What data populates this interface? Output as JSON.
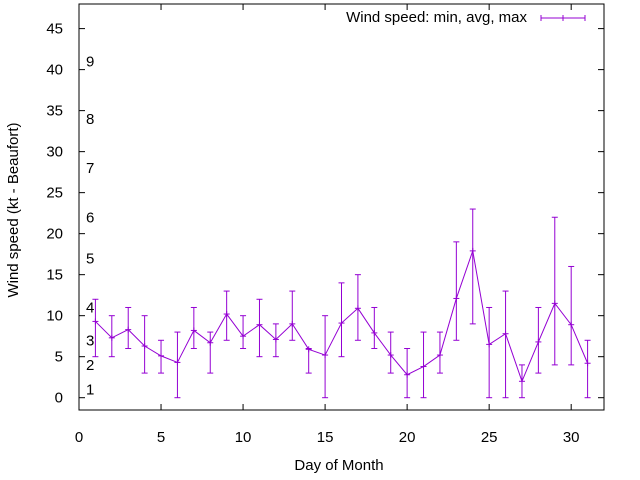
{
  "chart_data": {
    "type": "line",
    "title": "",
    "xlabel": "Day of Month",
    "ylabel": "Wind speed (kt - Beaufort)",
    "xlim": [
      0,
      32
    ],
    "ylim": [
      -1.5,
      48
    ],
    "x_ticks": [
      "0",
      "5",
      "10",
      "15",
      "20",
      "25",
      "30"
    ],
    "y_ticks": [
      "0",
      "5",
      "10",
      "15",
      "20",
      "25",
      "30",
      "35",
      "40",
      "45"
    ],
    "grid": false,
    "legend": "top-right",
    "beaufort_labels": [
      {
        "label": "1",
        "y": 1
      },
      {
        "label": "2",
        "y": 4
      },
      {
        "label": "3",
        "y": 7
      },
      {
        "label": "4",
        "y": 11
      },
      {
        "label": "5",
        "y": 17
      },
      {
        "label": "6",
        "y": 22
      },
      {
        "label": "7",
        "y": 28
      },
      {
        "label": "8",
        "y": 34
      },
      {
        "label": "9",
        "y": 41
      }
    ],
    "series": [
      {
        "name": "Wind speed: min, avg, max",
        "color": "#9400d3",
        "x": [
          1,
          2,
          3,
          4,
          5,
          6,
          7,
          8,
          9,
          10,
          11,
          12,
          13,
          14,
          15,
          16,
          17,
          18,
          19,
          20,
          21,
          22,
          23,
          24,
          25,
          26,
          27,
          28,
          29,
          30,
          31
        ],
        "avg": [
          9.3,
          7.3,
          8.3,
          6.3,
          5.1,
          4.3,
          8.2,
          6.7,
          10.2,
          7.5,
          8.9,
          7.1,
          9.0,
          5.9,
          5.2,
          9.1,
          10.9,
          7.9,
          5.2,
          2.8,
          3.8,
          5.2,
          12.1,
          17.9,
          6.5,
          7.8,
          2.0,
          6.8,
          11.5,
          8.9,
          4.2
        ],
        "min": [
          5,
          5,
          6,
          3,
          3,
          0,
          6,
          3,
          7,
          6,
          5,
          5,
          7,
          3,
          0,
          5,
          7,
          6,
          3,
          0,
          0,
          3,
          7,
          9,
          0,
          0,
          0,
          3,
          4,
          4,
          0
        ],
        "max": [
          12,
          10,
          11,
          10,
          7,
          8,
          11,
          8,
          13,
          10,
          12,
          9,
          13,
          6,
          10,
          14,
          15,
          11,
          8,
          6,
          8,
          8,
          19,
          23,
          11,
          13,
          4,
          11,
          22,
          16,
          7
        ]
      }
    ]
  }
}
